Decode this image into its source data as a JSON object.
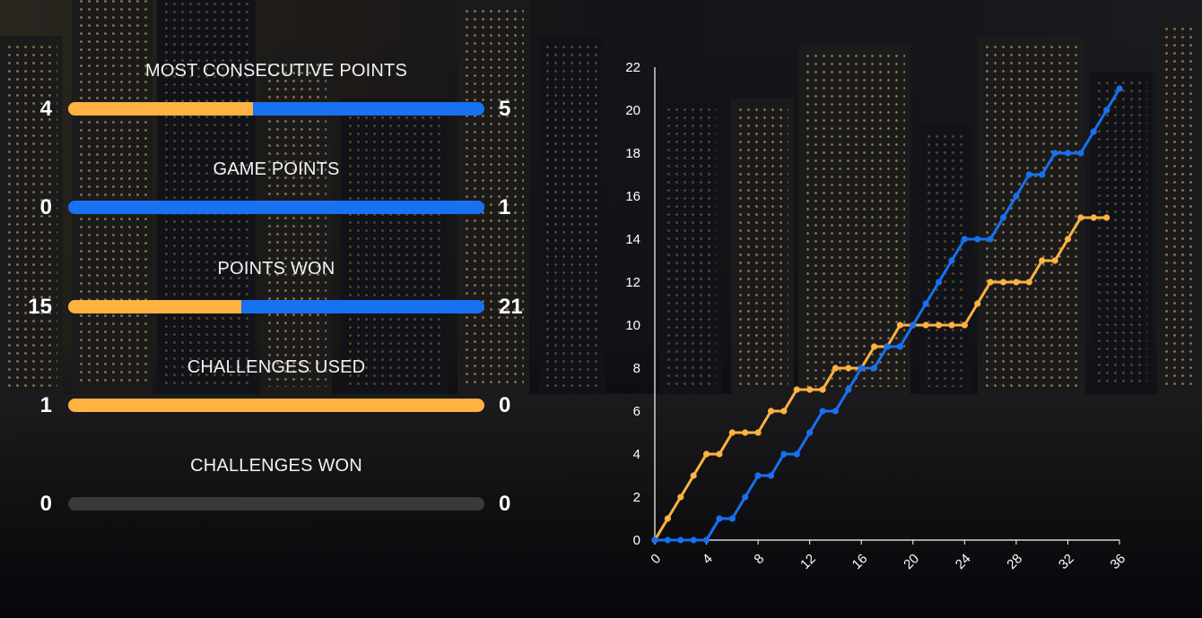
{
  "colors": {
    "player1": "#fdb241",
    "player2": "#1771f1",
    "empty": "#3a3a3c"
  },
  "stats": [
    {
      "title": "MOST CONSECUTIVE POINTS",
      "left": 4,
      "right": 5
    },
    {
      "title": "GAME POINTS",
      "left": 0,
      "right": 1
    },
    {
      "title": "POINTS WON",
      "left": 15,
      "right": 21
    },
    {
      "title": "CHALLENGES USED",
      "left": 1,
      "right": 0
    },
    {
      "title": "CHALLENGES WON",
      "left": 0,
      "right": 0
    }
  ],
  "chart_data": {
    "type": "line",
    "title": "",
    "xlabel": "",
    "ylabel": "",
    "xlim": [
      0,
      36
    ],
    "ylim": [
      0,
      22
    ],
    "xticks": [
      0,
      4,
      8,
      12,
      16,
      20,
      24,
      28,
      32,
      36
    ],
    "yticks": [
      0,
      2,
      4,
      6,
      8,
      10,
      12,
      14,
      16,
      18,
      20,
      22
    ],
    "grid": false,
    "x": [
      0,
      1,
      2,
      3,
      4,
      5,
      6,
      7,
      8,
      9,
      10,
      11,
      12,
      13,
      14,
      15,
      16,
      17,
      18,
      19,
      20,
      21,
      22,
      23,
      24,
      25,
      26,
      27,
      28,
      29,
      30,
      31,
      32,
      33,
      34,
      35,
      36
    ],
    "series": [
      {
        "color": "#fdb241",
        "values": [
          0,
          1,
          2,
          3,
          4,
          4,
          5,
          5,
          5,
          6,
          6,
          7,
          7,
          7,
          8,
          8,
          8,
          9,
          9,
          10,
          10,
          10,
          10,
          10,
          10,
          11,
          12,
          12,
          12,
          12,
          13,
          13,
          14,
          15,
          15,
          15,
          null
        ]
      },
      {
        "color": "#1771f1",
        "values": [
          0,
          0,
          0,
          0,
          0,
          1,
          1,
          2,
          3,
          3,
          4,
          4,
          5,
          6,
          6,
          7,
          8,
          8,
          9,
          9,
          10,
          11,
          12,
          13,
          14,
          14,
          14,
          15,
          16,
          17,
          17,
          18,
          18,
          18,
          19,
          20,
          21
        ]
      }
    ]
  }
}
